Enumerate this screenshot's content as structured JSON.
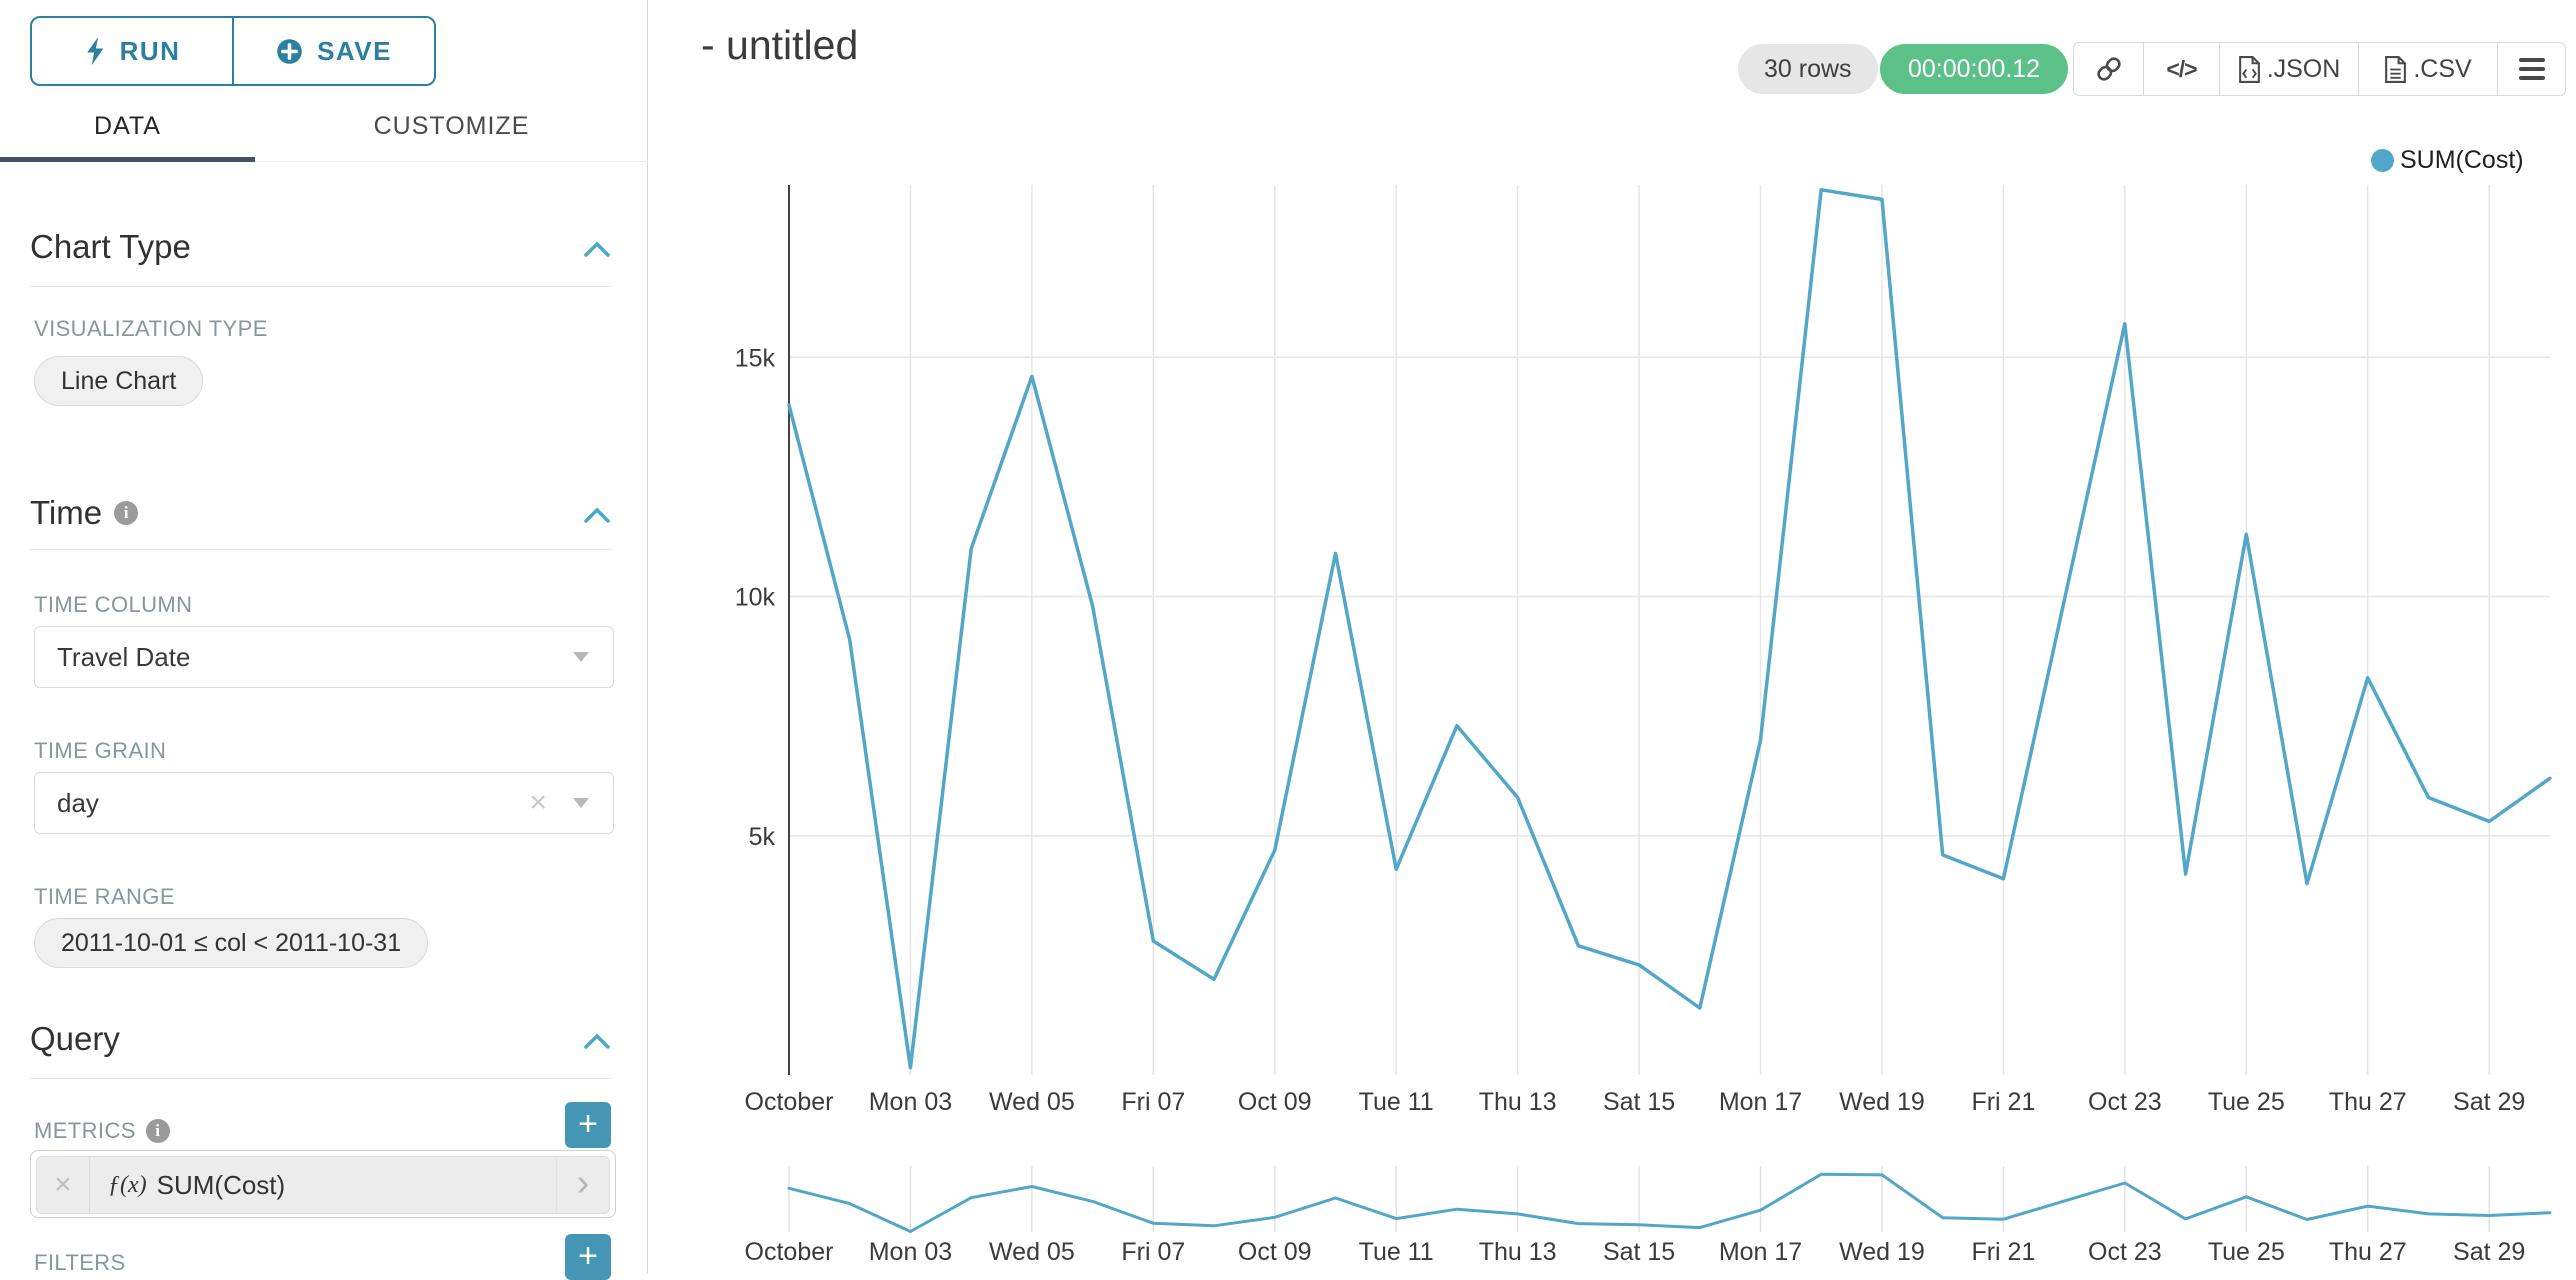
{
  "header": {
    "title": "- untitled",
    "rows_badge": "30 rows",
    "timer_badge": "00:00:00.12",
    "export_json_label": ".JSON",
    "export_csv_label": ".CSV"
  },
  "sidebar": {
    "run_label": "RUN",
    "save_label": "SAVE",
    "tabs": [
      {
        "label": "DATA",
        "active": true
      },
      {
        "label": "CUSTOMIZE",
        "active": false
      }
    ],
    "chart_type_section": {
      "title": "Chart Type",
      "field_label": "VISUALIZATION TYPE",
      "value": "Line Chart"
    },
    "time_section": {
      "title": "Time",
      "time_column_label": "TIME COLUMN",
      "time_column_value": "Travel Date",
      "time_grain_label": "TIME GRAIN",
      "time_grain_value": "day",
      "time_range_label": "TIME RANGE",
      "time_range_value": "2011-10-01 ≤ col < 2011-10-31"
    },
    "query_section": {
      "title": "Query",
      "metrics_label": "METRICS",
      "metric_fx": "ƒ(x)",
      "metric_value": "SUM(Cost)",
      "filters_label": "FILTERS"
    }
  },
  "legend": {
    "label": "SUM(Cost)"
  },
  "colors": {
    "line": "#52A6C8",
    "accent_teal": "#2B7F9F",
    "plus_button": "#4596B5",
    "timer_green": "#5BC189",
    "tab_underline": "#494F67",
    "grid": "#e6e6e6",
    "axis": "#444444",
    "tick_text": "#3b3b3b"
  },
  "chart_data": {
    "type": "line",
    "title": "- untitled",
    "x_unit": "day of October 2011 (time grain: day)",
    "x_days": [
      1,
      2,
      3,
      4,
      5,
      6,
      7,
      8,
      9,
      10,
      11,
      12,
      13,
      14,
      15,
      16,
      17,
      18,
      19,
      20,
      21,
      22,
      23,
      24,
      25,
      26,
      27,
      28,
      29,
      30
    ],
    "series": [
      {
        "name": "SUM(Cost)",
        "values": [
          14000,
          9100,
          150,
          11000,
          14600,
          9800,
          2800,
          2000,
          4700,
          10900,
          4300,
          7300,
          5800,
          2700,
          2300,
          1400,
          7000,
          18500,
          18300,
          4600,
          4100,
          9900,
          15700,
          4200,
          11300,
          4000,
          8300,
          5800,
          5300,
          6200
        ]
      }
    ],
    "x_tick_labels": [
      "October",
      "Mon 03",
      "Wed 05",
      "Fri 07",
      "Oct 09",
      "Tue 11",
      "Thu 13",
      "Sat 15",
      "Mon 17",
      "Wed 19",
      "Fri 21",
      "Oct 23",
      "Tue 25",
      "Thu 27",
      "Sat 29"
    ],
    "x_tick_days": [
      1,
      3,
      5,
      7,
      9,
      11,
      13,
      15,
      17,
      19,
      21,
      23,
      25,
      27,
      29
    ],
    "y_tick_labels": [
      "5k",
      "10k",
      "15k"
    ],
    "y_tick_values": [
      5000,
      10000,
      15000
    ],
    "ylim": [
      0,
      18600
    ],
    "grid": true,
    "legend": {
      "label": "SUM(Cost)",
      "position": "top-right"
    },
    "has_range_selector_chart": true
  }
}
